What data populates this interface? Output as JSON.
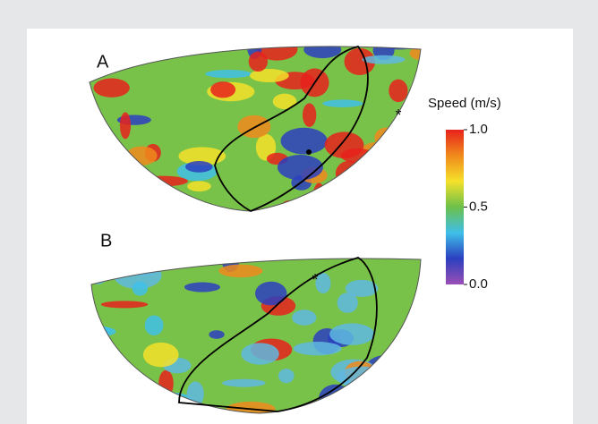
{
  "chart_data": {
    "type": "map",
    "panels": [
      "A",
      "B"
    ],
    "colorbar": {
      "title": "Speed (m/s)",
      "lim": [
        0,
        1
      ],
      "ticks": [
        {
          "value": 1,
          "label": "1.0"
        },
        {
          "value": 0.5,
          "label": "0.5"
        },
        {
          "value": 0,
          "label": "0.0"
        }
      ],
      "colors": [
        "#9b4fb5",
        "#2b3fbf",
        "#3fbfe8",
        "#6cc04a",
        "#f5e12a",
        "#f08a1c",
        "#e8221c"
      ]
    }
  }
}
